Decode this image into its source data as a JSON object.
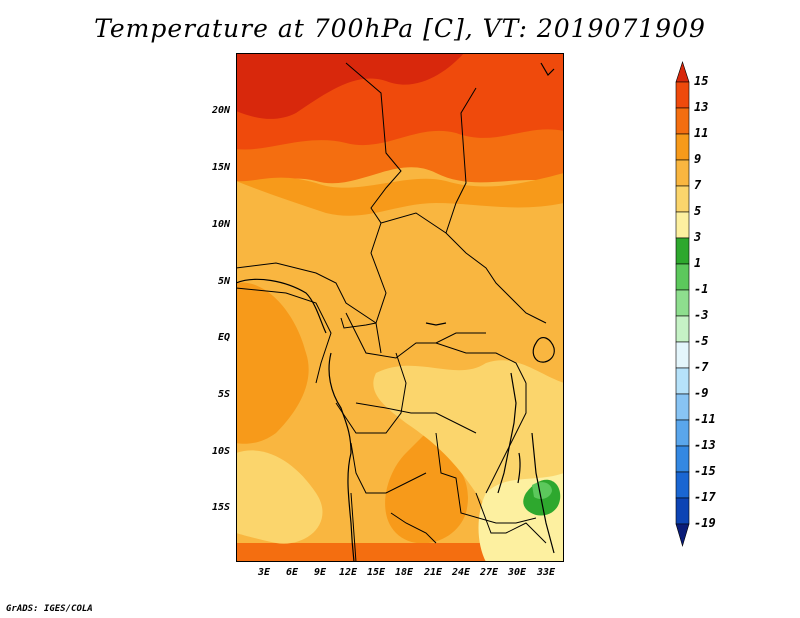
{
  "title": "Temperature at 700hPa [C], VT: 2019071909",
  "credit": "GrADS: IGES/COLA",
  "map": {
    "lat_labels": [
      "20N",
      "15N",
      "10N",
      "5N",
      "EQ",
      "5S",
      "10S",
      "15S"
    ],
    "lon_labels": [
      "3E",
      "6E",
      "9E",
      "12E",
      "15E",
      "18E",
      "21E",
      "24E",
      "27E",
      "30E",
      "33E"
    ]
  },
  "colorbar": {
    "labels": [
      "15",
      "13",
      "11",
      "9",
      "7",
      "5",
      "3",
      "1",
      "-1",
      "-3",
      "-5",
      "-7",
      "-9",
      "-11",
      "-13",
      "-15",
      "-17",
      "-19"
    ],
    "colors": [
      "#d8280c",
      "#ef4a0c",
      "#f46e10",
      "#f79a1a",
      "#f9b640",
      "#fbd56c",
      "#fdf0a0",
      "#2ea82e",
      "#5cc85c",
      "#8ede8e",
      "#c6f2c6",
      "#e4f6fc",
      "#b6e2fa",
      "#88c4f4",
      "#5aa6ec",
      "#3488e2",
      "#1a66d2",
      "#0d44b4",
      "#0a1c78"
    ]
  }
}
